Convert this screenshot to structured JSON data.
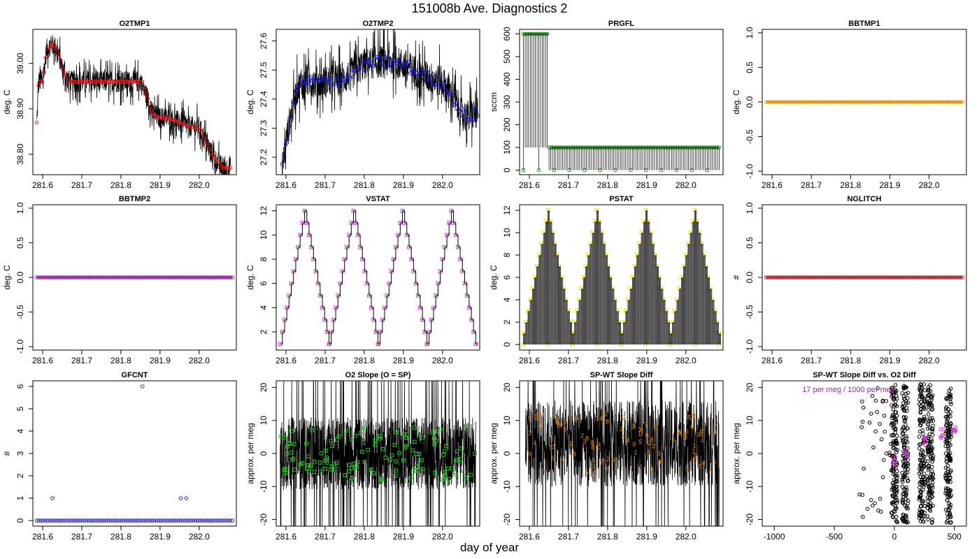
{
  "figure": {
    "title": "151008b   Ave. Diagnostics 2",
    "xlabel": "day of year"
  },
  "colors": {
    "trace": "#000000",
    "red": "#e41a1c",
    "blue": "#1f1fdd",
    "green": "#1a9e1a",
    "orange": "#f5a300",
    "magenta": "#cc33cc",
    "yellow": "#f0e000",
    "darkred": "#b22222",
    "navy": "#2a2ab0",
    "lime": "#22cc22",
    "darkorange": "#f08000",
    "purple": "#9b1fa6"
  },
  "chart_data": [
    {
      "type": "line",
      "title": "O2TMP1",
      "ylabel": "deg. C",
      "xlim": [
        281.575,
        282.095
      ],
      "ylim": [
        38.755,
        39.075
      ],
      "xticks": [
        "281.6",
        "281.7",
        "281.8",
        "281.9",
        "282.0",
        "282.1"
      ],
      "yticks": [
        "38.80",
        "38.90",
        "39.00"
      ],
      "series": [
        {
          "marker_color": "red",
          "x": [
            281.585,
            281.59,
            281.6,
            281.61,
            281.62,
            281.63,
            281.64,
            281.65,
            281.66,
            281.67,
            281.7,
            281.75,
            281.8,
            281.85,
            281.87,
            281.88,
            281.9,
            281.92,
            281.95,
            281.98,
            281.99,
            282.0,
            282.02,
            282.04,
            282.06,
            282.08
          ],
          "y": [
            38.87,
            38.96,
            38.96,
            39.03,
            39.04,
            39.04,
            39.02,
            38.99,
            38.97,
            38.96,
            38.96,
            38.96,
            38.96,
            38.96,
            38.92,
            38.89,
            38.88,
            38.88,
            38.87,
            38.86,
            38.86,
            38.86,
            38.82,
            38.79,
            38.77,
            38.77
          ]
        }
      ]
    },
    {
      "type": "line",
      "title": "O2TMP2",
      "ylabel": "deg. C",
      "xlim": [
        281.575,
        282.095
      ],
      "ylim": [
        27.14,
        27.64
      ],
      "xticks": [
        "281.6",
        "281.7",
        "281.8",
        "281.9",
        "282.0",
        "282.1"
      ],
      "yticks": [
        "27.2",
        "27.3",
        "27.4",
        "27.5",
        "27.6"
      ],
      "series": [
        {
          "marker_color": "blue",
          "x": [
            281.59,
            281.6,
            281.61,
            281.63,
            281.65,
            281.7,
            281.75,
            281.8,
            281.85,
            281.9,
            281.95,
            282.0,
            282.03,
            282.05,
            282.06,
            282.09
          ],
          "y": [
            27.16,
            27.25,
            27.33,
            27.44,
            27.46,
            27.46,
            27.47,
            27.52,
            27.53,
            27.52,
            27.48,
            27.46,
            27.4,
            27.35,
            27.34,
            27.35
          ]
        }
      ]
    },
    {
      "type": "line",
      "title": "PRGFL",
      "ylabel": "sccm",
      "xlim": [
        281.575,
        282.095
      ],
      "ylim": [
        -20,
        620
      ],
      "xticks": [
        "281.6",
        "281.7",
        "281.8",
        "281.9",
        "282.0",
        "282.1"
      ],
      "yticks": [
        "0",
        "100",
        "200",
        "300",
        "400",
        "500",
        "600"
      ],
      "series": [
        {
          "marker_color": "green",
          "segments": [
            {
              "x": [
                281.585,
                281.65
              ],
              "y": 600
            },
            {
              "x": [
                281.655,
                282.085
              ],
              "y": 100
            }
          ]
        }
      ]
    },
    {
      "type": "line",
      "title": "BBTMP1",
      "ylabel": "deg. C",
      "xlim": [
        281.575,
        282.095
      ],
      "ylim": [
        -1.05,
        1.05
      ],
      "xticks": [
        "281.6",
        "281.7",
        "281.8",
        "281.9",
        "282.0",
        "282.1"
      ],
      "yticks": [
        "-1.0",
        "-0.5",
        "0.0",
        "0.5",
        "1.0"
      ],
      "series": [
        {
          "marker_color": "orange",
          "x": [
            281.585,
            282.085
          ],
          "y": [
            0,
            0
          ]
        }
      ]
    },
    {
      "type": "line",
      "title": "BBTMP2",
      "ylabel": "deg. C",
      "xlim": [
        281.575,
        282.095
      ],
      "ylim": [
        -1.05,
        1.05
      ],
      "xticks": [
        "281.6",
        "281.7",
        "281.8",
        "281.9",
        "282.0",
        "282.1"
      ],
      "yticks": [
        "-1.0",
        "-0.5",
        "0.0",
        "0.5",
        "1.0"
      ],
      "series": [
        {
          "marker_color": "purple",
          "x": [
            281.585,
            282.085
          ],
          "y": [
            0,
            0
          ]
        }
      ]
    },
    {
      "type": "line",
      "title": "VSTAT",
      "ylabel": "deg. C",
      "xlim": [
        281.575,
        282.095
      ],
      "ylim": [
        0.5,
        12.5
      ],
      "xticks": [
        "281.6",
        "281.7",
        "281.8",
        "281.9",
        "282.0",
        "282.1"
      ],
      "yticks": [
        "2",
        "4",
        "6",
        "8",
        "10",
        "12"
      ],
      "series": [
        {
          "marker_color": "magenta",
          "cycle_starts": [
            281.585,
            281.71,
            281.835,
            281.96
          ],
          "cycle_length": 0.125,
          "min": 1,
          "max": 12
        }
      ]
    },
    {
      "type": "line",
      "title": "PSTAT",
      "ylabel": "deg. C",
      "xlim": [
        281.575,
        282.095
      ],
      "ylim": [
        -0.5,
        12.5
      ],
      "xticks": [
        "281.6",
        "281.7",
        "281.8",
        "281.9",
        "282.0",
        "282.1"
      ],
      "yticks": [
        "0",
        "2",
        "4",
        "6",
        "8",
        "10",
        "12"
      ],
      "series": [
        {
          "marker_color": "yellow",
          "cycle_starts": [
            281.585,
            281.71,
            281.835,
            281.96
          ],
          "cycle_length": 0.125,
          "min": 1,
          "max": 12
        }
      ]
    },
    {
      "type": "line",
      "title": "NGLITCH",
      "ylabel": "#",
      "xlim": [
        281.575,
        282.095
      ],
      "ylim": [
        -1.05,
        1.05
      ],
      "xticks": [
        "281.6",
        "281.7",
        "281.8",
        "281.9",
        "282.0",
        "282.1"
      ],
      "yticks": [
        "-1.0",
        "-0.5",
        "0.0",
        "0.5",
        "1.0"
      ],
      "series": [
        {
          "marker_color": "darkred",
          "x": [
            281.585,
            282.085
          ],
          "y": [
            0,
            0
          ]
        }
      ]
    },
    {
      "type": "scatter",
      "title": "GFCNT",
      "ylabel": "#",
      "xlim": [
        281.575,
        282.095
      ],
      "ylim": [
        -0.25,
        6.25
      ],
      "xticks": [
        "281.6",
        "281.7",
        "281.8",
        "281.9",
        "282.0",
        "282.1"
      ],
      "yticks": [
        "0",
        "1",
        "2",
        "3",
        "4",
        "5",
        "6"
      ],
      "series": [
        {
          "marker_color": "navy",
          "baseline": {
            "x": [
              281.585,
              282.085
            ],
            "y": 0
          },
          "x": [
            281.625,
            281.855,
            281.953,
            281.967
          ],
          "y": [
            1,
            6,
            1,
            1
          ]
        }
      ]
    },
    {
      "type": "line",
      "title": "O2 Slope (O = SP)",
      "ylabel": "approx. per meg",
      "xlim": [
        281.575,
        282.095
      ],
      "ylim": [
        -22,
        22
      ],
      "xticks": [
        "281.6",
        "281.7",
        "281.8",
        "281.9",
        "282.0",
        "282.1"
      ],
      "yticks": [
        "-20",
        "-10",
        "0",
        "10",
        "20"
      ],
      "series": [
        {
          "marker_color": "lime",
          "x_range": [
            281.585,
            282.085
          ],
          "y_range": [
            -8,
            8
          ]
        }
      ]
    },
    {
      "type": "line",
      "title": "SP-WT Slope Diff",
      "ylabel": "approx. per meg",
      "xlim": [
        281.575,
        282.095
      ],
      "ylim": [
        -22,
        22
      ],
      "xticks": [
        "281.6",
        "281.7",
        "281.8",
        "281.9",
        "282.0",
        "282.1"
      ],
      "yticks": [
        "-20",
        "-10",
        "0",
        "10",
        "20"
      ],
      "series": [
        {
          "marker_color": "darkorange",
          "labels": [
            "1",
            "2",
            "3",
            "4",
            "5",
            "6",
            "7",
            "8",
            "9"
          ],
          "x_range": [
            281.59,
            282.085
          ],
          "y_range": [
            -6,
            12
          ]
        }
      ]
    },
    {
      "type": "scatter",
      "title": "SP-WT Slope Diff vs. O2 Diff",
      "ylabel": "approx. per meg",
      "xlim": [
        -1100,
        600
      ],
      "ylim": [
        -22,
        22
      ],
      "xticks": [
        "-1000",
        "-500",
        "0",
        "500"
      ],
      "yticks": [
        "-20",
        "-10",
        "0",
        "10",
        "20"
      ],
      "annotation": "17 per meg / 1000 per meg",
      "series": [
        {
          "name": "",
          "marker_color": "trace",
          "x_range": [
            -250,
            600
          ],
          "y_range": [
            -20,
            20
          ]
        },
        {
          "name": "",
          "marker_color": "magenta",
          "x": [
            0,
            100,
            250,
            400,
            500
          ],
          "y": [
            -2,
            0,
            4,
            6,
            8
          ]
        }
      ]
    }
  ]
}
